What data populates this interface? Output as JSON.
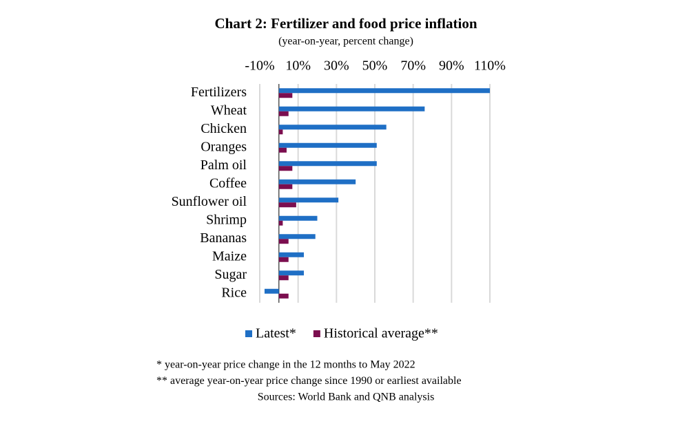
{
  "chart_data": {
    "type": "hbar",
    "title": "Chart 2: Fertilizer and food price inflation",
    "subtitle": "(year-on-year, percent change)",
    "categories": [
      "Fertilizers",
      "Wheat",
      "Chicken",
      "Oranges",
      "Palm oil",
      "Coffee",
      "Sunflower oil",
      "Shrimp",
      "Bananas",
      "Maize",
      "Sugar",
      "Rice"
    ],
    "series": [
      {
        "name": "Latest*",
        "color": "#1f6fc5",
        "values": [
          110,
          76,
          56,
          51,
          51,
          40,
          31,
          20,
          19,
          13,
          13,
          -7.5
        ]
      },
      {
        "name": "Historical average**",
        "color": "#7b0e4f",
        "values": [
          7,
          5,
          2,
          4,
          7,
          7,
          9,
          2,
          5,
          5,
          5,
          5
        ]
      }
    ],
    "xlim": [
      -10,
      110
    ],
    "xticks": [
      {
        "value": -10,
        "label": "-10%"
      },
      {
        "value": 10,
        "label": "10%"
      },
      {
        "value": 30,
        "label": "30%"
      },
      {
        "value": 50,
        "label": "50%"
      },
      {
        "value": 70,
        "label": "70%"
      },
      {
        "value": 90,
        "label": "90%"
      },
      {
        "value": 110,
        "label": "110%"
      }
    ],
    "grid": true,
    "legend": "bottom",
    "notes": [
      "* year-on-year price change in the 12 months to May 2022",
      "** average year-on-year price change since 1990 or earliest available",
      "Sources: World Bank and QNB analysis"
    ]
  }
}
